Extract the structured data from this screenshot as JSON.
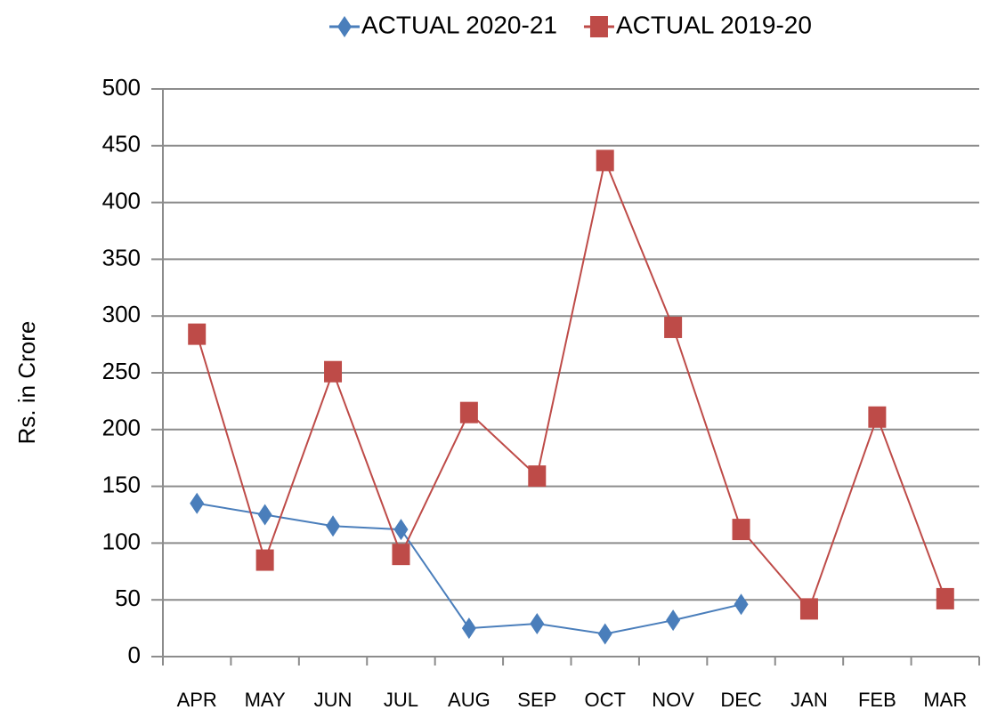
{
  "chart_data": {
    "type": "line",
    "y_label": "Rs. in Crore",
    "categories": [
      "APR",
      "MAY",
      "JUN",
      "JUL",
      "AUG",
      "SEP",
      "OCT",
      "NOV",
      "DEC",
      "JAN",
      "FEB",
      "MAR"
    ],
    "series": [
      {
        "name": "ACTUAL 2020-21",
        "color": "#4a7ebb",
        "marker": "diamond",
        "values": [
          135,
          125,
          115,
          112,
          25,
          29,
          20,
          32,
          46,
          null,
          null,
          null
        ]
      },
      {
        "name": "ACTUAL 2019-20",
        "color": "#be4b48",
        "marker": "square",
        "values": [
          284,
          85,
          251,
          90,
          215,
          159,
          437,
          290,
          112,
          42,
          211,
          51
        ]
      }
    ],
    "ylim": [
      0,
      500
    ],
    "yticks": [
      0,
      50,
      100,
      150,
      200,
      250,
      300,
      350,
      400,
      450,
      500
    ],
    "grid": true,
    "legend": "top"
  }
}
